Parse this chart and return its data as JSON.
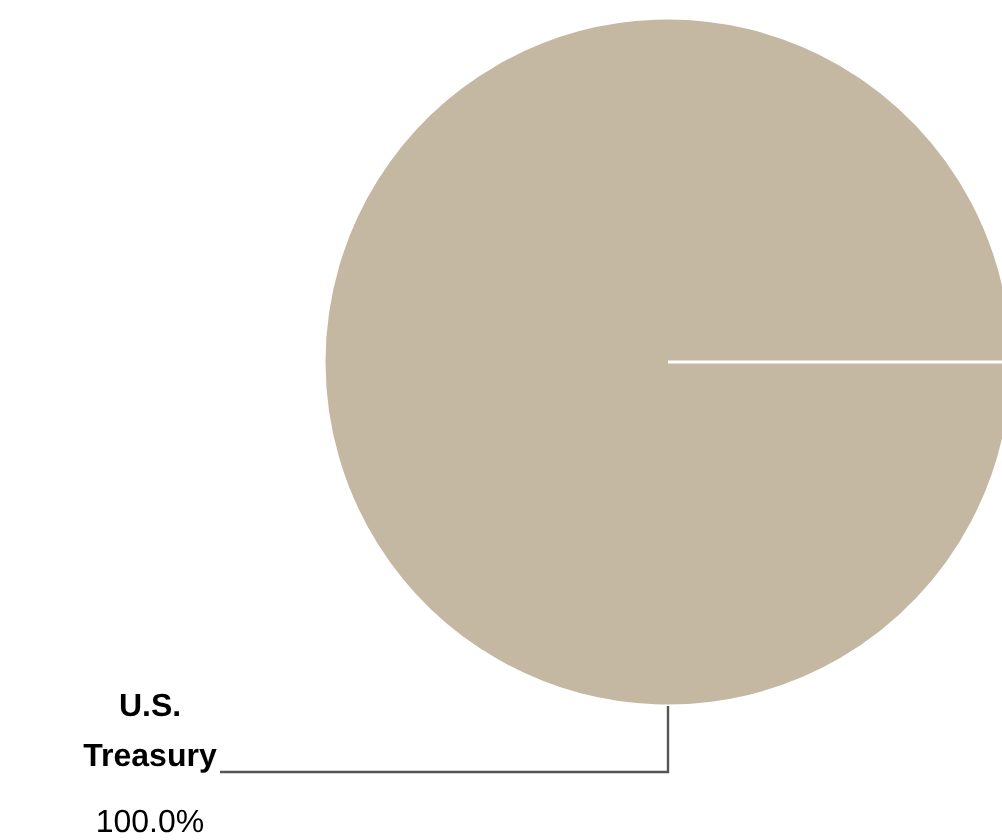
{
  "chart_data": {
    "type": "pie",
    "categories": [
      "U.S. Treasury"
    ],
    "values": [
      100
    ],
    "colors": [
      "#c5b8a3"
    ],
    "value_labels": [
      "100.0%"
    ],
    "legend": false
  }
}
